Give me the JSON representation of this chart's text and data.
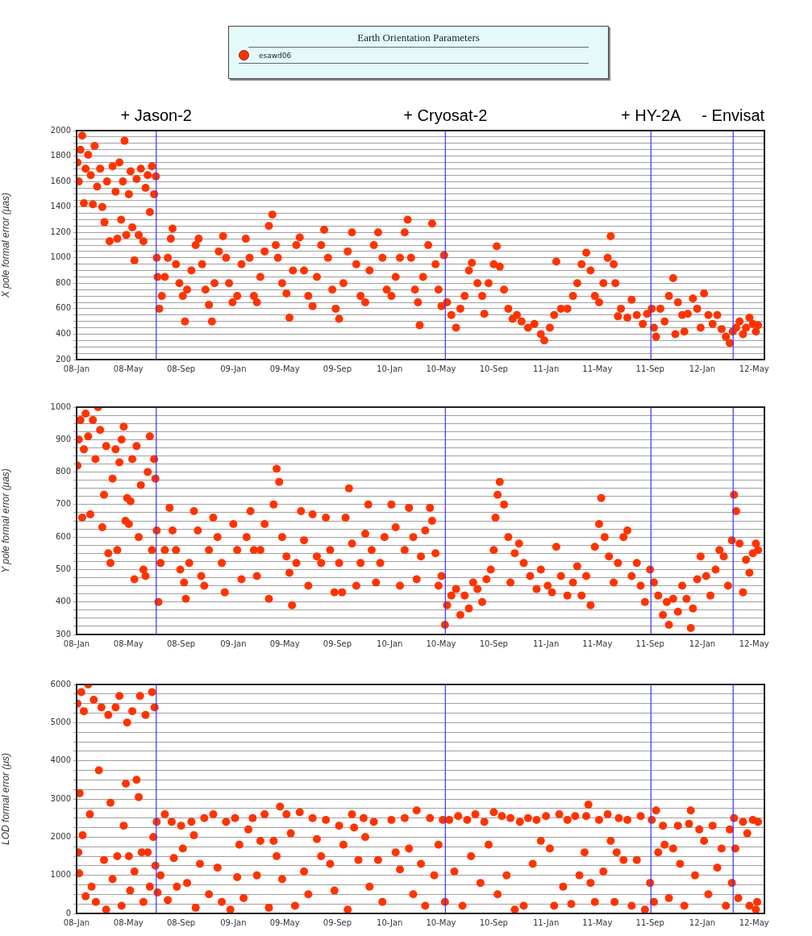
{
  "chart_data": [
    {
      "type": "scatter",
      "legend": "top",
      "legend_title": "Earth Orientation Parameters",
      "ylabel": "X pole formal error (μas)",
      "marker": "circle",
      "grid": "y",
      "xlim": [
        "2008-01-01",
        "2012-05-25"
      ],
      "xticks": [
        {
          "value": "2008-01-01",
          "label": "08-Jan"
        },
        {
          "value": "2008-05-01",
          "label": "08-May"
        },
        {
          "value": "2008-09-01",
          "label": "08-Sep"
        },
        {
          "value": "2009-01-01",
          "label": "09-Jan"
        },
        {
          "value": "2009-05-01",
          "label": "09-May"
        },
        {
          "value": "2009-09-01",
          "label": "09-Sep"
        },
        {
          "value": "2010-01-01",
          "label": "10-Jan"
        },
        {
          "value": "2010-05-01",
          "label": "10-May"
        },
        {
          "value": "2010-09-01",
          "label": "10-Sep"
        },
        {
          "value": "2011-01-01",
          "label": "11-Jan"
        },
        {
          "value": "2011-05-01",
          "label": "11-May"
        },
        {
          "value": "2011-09-01",
          "label": "11-Sep"
        },
        {
          "value": "2012-01-01",
          "label": "12-Jan"
        },
        {
          "value": "2012-05-01",
          "label": "12-May"
        }
      ],
      "ylim": [
        200,
        2000
      ],
      "yticks": [
        200,
        {
          "value": 250,
          "label": null
        },
        {
          "value": 300,
          "label": null
        },
        {
          "value": 350,
          "label": null
        },
        400,
        {
          "value": 450,
          "label": null
        },
        {
          "value": 500,
          "label": null
        },
        {
          "value": 550,
          "label": null
        },
        600,
        {
          "value": 650,
          "label": null
        },
        {
          "value": 700,
          "label": null
        },
        {
          "value": 750,
          "label": null
        },
        800,
        {
          "value": 850,
          "label": null
        },
        {
          "value": 900,
          "label": null
        },
        {
          "value": 950,
          "label": null
        },
        1000,
        {
          "value": 1050,
          "label": null
        },
        {
          "value": 1100,
          "label": null
        },
        {
          "value": 1150,
          "label": null
        },
        1200,
        {
          "value": 1250,
          "label": null
        },
        {
          "value": 1300,
          "label": null
        },
        {
          "value": 1350,
          "label": null
        },
        1400,
        {
          "value": 1450,
          "label": null
        },
        {
          "value": 1500,
          "label": null
        },
        {
          "value": 1550,
          "label": null
        },
        1600,
        {
          "value": 1650,
          "label": null
        },
        {
          "value": 1700,
          "label": null
        },
        {
          "value": 1750,
          "label": null
        },
        1800,
        {
          "value": 1850,
          "label": null
        },
        {
          "value": 1900,
          "label": null
        },
        {
          "value": 1950,
          "label": null
        },
        2000
      ],
      "ref_lines": [
        {
          "axis": "x",
          "value": "2008-07-05",
          "label": "+ Jason-2",
          "color": "#3333ff"
        },
        {
          "axis": "x",
          "value": "2010-05-11",
          "label": "+ Cryosat-2",
          "color": "#3333ff"
        },
        {
          "axis": "x",
          "value": "2011-09-03",
          "label": "+ HY-2A",
          "color": "#3333ff"
        },
        {
          "axis": "x",
          "value": "2012-03-13",
          "label": "- Envisat",
          "color": "#3333ff"
        }
      ],
      "series": [
        {
          "name": "esawd06",
          "color": "#ff3300",
          "x": [
            "2008-01-03",
            "2008-01-06",
            "2008-01-10",
            "2008-01-14",
            "2008-01-18",
            "2008-01-22",
            "2008-01-28",
            "2008-02-03",
            "2008-02-08",
            "2008-02-12",
            "2008-02-18",
            "2008-02-25",
            "2008-03-01",
            "2008-03-06",
            "2008-03-12",
            "2008-03-18",
            "2008-03-25",
            "2008-04-01",
            "2008-04-05",
            "2008-04-10",
            "2008-04-14",
            "2008-04-18",
            "2008-04-22",
            "2008-04-26",
            "2008-05-02",
            "2008-05-06",
            "2008-05-10",
            "2008-05-15",
            "2008-05-20",
            "2008-05-25",
            "2008-05-30",
            "2008-06-05",
            "2008-06-10",
            "2008-06-15",
            "2008-06-20",
            "2008-06-25",
            "2008-06-30",
            "2008-07-04",
            "2008-07-06",
            "2008-07-08",
            "2008-07-12",
            "2008-07-18",
            "2008-07-25",
            "2008-08-01",
            "2008-08-08",
            "2008-08-12",
            "2008-08-20",
            "2008-08-28",
            "2008-09-05",
            "2008-09-10",
            "2008-09-15",
            "2008-09-25",
            "2008-10-05",
            "2008-10-12",
            "2008-10-20",
            "2008-10-28",
            "2008-11-05",
            "2008-11-12",
            "2008-11-18",
            "2008-11-28",
            "2008-12-08",
            "2008-12-15",
            "2008-12-22",
            "2008-12-30",
            "2009-01-10",
            "2009-01-20",
            "2009-01-30",
            "2009-02-08",
            "2009-02-18",
            "2009-02-25",
            "2009-03-05",
            "2009-03-15",
            "2009-03-25",
            "2009-04-02",
            "2009-04-10",
            "2009-04-15",
            "2009-04-25",
            "2009-05-05",
            "2009-05-12",
            "2009-05-20",
            "2009-05-28",
            "2009-06-05",
            "2009-06-15",
            "2009-06-25",
            "2009-07-05",
            "2009-07-15",
            "2009-07-25",
            "2009-08-01",
            "2009-08-10",
            "2009-08-20",
            "2009-08-28",
            "2009-09-05",
            "2009-09-15",
            "2009-09-25",
            "2009-10-05",
            "2009-10-15",
            "2009-10-25",
            "2009-11-05",
            "2009-11-15",
            "2009-11-25",
            "2009-12-05",
            "2009-12-15",
            "2009-12-25",
            "2010-01-05",
            "2010-01-15",
            "2010-01-25",
            "2010-02-05",
            "2010-02-12",
            "2010-02-20",
            "2010-03-01",
            "2010-03-08",
            "2010-03-12",
            "2010-03-20",
            "2010-04-01",
            "2010-04-10",
            "2010-04-18",
            "2010-04-25",
            "2010-05-02",
            "2010-05-08",
            "2010-05-15",
            "2010-05-25",
            "2010-06-05",
            "2010-06-15",
            "2010-06-25",
            "2010-07-05",
            "2010-07-12",
            "2010-07-25",
            "2010-08-05",
            "2010-08-10",
            "2010-08-20",
            "2010-09-01",
            "2010-09-08",
            "2010-09-15",
            "2010-09-25",
            "2010-10-05",
            "2010-10-15",
            "2010-10-25",
            "2010-11-05",
            "2010-11-20",
            "2010-12-05",
            "2010-12-20",
            "2010-12-28",
            "2011-01-10",
            "2011-01-20",
            "2011-01-25",
            "2011-02-05",
            "2011-02-20",
            "2011-03-05",
            "2011-03-15",
            "2011-03-25",
            "2011-04-05",
            "2011-04-15",
            "2011-04-25",
            "2011-05-05",
            "2011-05-15",
            "2011-05-25",
            "2011-06-01",
            "2011-06-08",
            "2011-06-12",
            "2011-06-18",
            "2011-06-25",
            "2011-07-10",
            "2011-07-20",
            "2011-08-01",
            "2011-08-15",
            "2011-08-25",
            "2011-09-05",
            "2011-09-10",
            "2011-09-15",
            "2011-09-25",
            "2011-10-05",
            "2011-10-15",
            "2011-10-25",
            "2011-10-30",
            "2011-11-05",
            "2011-11-15",
            "2011-11-20",
            "2011-11-28",
            "2011-12-10",
            "2011-12-20",
            "2011-12-28",
            "2012-01-05",
            "2012-01-15",
            "2012-01-25",
            "2012-02-05",
            "2012-02-15",
            "2012-02-25",
            "2012-03-05",
            "2012-03-12",
            "2012-03-20",
            "2012-03-28",
            "2012-04-05",
            "2012-04-12",
            "2012-04-20",
            "2012-04-28",
            "2012-05-05",
            "2012-05-10"
          ],
          "values": [
            1750,
            1600,
            1850,
            1960,
            1430,
            1700,
            1810,
            1650,
            1420,
            1880,
            1560,
            1700,
            1400,
            1280,
            1600,
            1130,
            1720,
            1520,
            1150,
            1750,
            1300,
            1600,
            1920,
            1180,
            1500,
            1680,
            1240,
            980,
            1620,
            1180,
            1700,
            1130,
            1550,
            1650,
            1360,
            1720,
            1500,
            1640,
            1000,
            850,
            600,
            700,
            850,
            1000,
            1150,
            1230,
            950,
            800,
            700,
            500,
            750,
            900,
            1100,
            1150,
            950,
            750,
            630,
            500,
            800,
            1050,
            1170,
            1000,
            800,
            650,
            700,
            950,
            1150,
            1000,
            700,
            650,
            850,
            1050,
            1250,
            1340,
            1100,
            1000,
            800,
            720,
            530,
            900,
            1100,
            1160,
            900,
            700,
            620,
            850,
            1100,
            1220,
            1000,
            750,
            600,
            520,
            800,
            1050,
            1200,
            950,
            700,
            650,
            900,
            1100,
            1200,
            1000,
            750,
            700,
            850,
            1000,
            1200,
            1300,
            1000,
            750,
            650,
            470,
            850,
            1100,
            1270,
            950,
            750,
            620,
            1020,
            650,
            550,
            450,
            600,
            700,
            900,
            960,
            800,
            700,
            560,
            800,
            950,
            1090,
            930,
            750,
            600,
            520,
            550,
            500,
            450,
            480,
            400,
            350,
            450,
            550,
            970,
            600,
            600,
            700,
            800,
            950,
            1040,
            900,
            700,
            650,
            800,
            1000,
            1170,
            950,
            800,
            540,
            600,
            530,
            670,
            550,
            480,
            560,
            600,
            450,
            380,
            600,
            500,
            700,
            840,
            400,
            650,
            550,
            420,
            560,
            680,
            600,
            450,
            720,
            550,
            480,
            550,
            440,
            380,
            330,
            420,
            450,
            500,
            400,
            450,
            530,
            480,
            420,
            470
          ]
        }
      ]
    },
    {
      "type": "scatter",
      "ylabel": "Y pole formal error (μas)",
      "marker": "circle",
      "grid": "y",
      "xlim": [
        "2008-01-01",
        "2012-05-25"
      ],
      "xticks": [
        {
          "value": "2008-01-01",
          "label": "08-Jan"
        },
        {
          "value": "2008-05-01",
          "label": "08-May"
        },
        {
          "value": "2008-09-01",
          "label": "08-Sep"
        },
        {
          "value": "2009-01-01",
          "label": "09-Jan"
        },
        {
          "value": "2009-05-01",
          "label": "09-May"
        },
        {
          "value": "2009-09-01",
          "label": "09-Sep"
        },
        {
          "value": "2010-01-01",
          "label": "10-Jan"
        },
        {
          "value": "2010-05-01",
          "label": "10-May"
        },
        {
          "value": "2010-09-01",
          "label": "10-Sep"
        },
        {
          "value": "2011-01-01",
          "label": "11-Jan"
        },
        {
          "value": "2011-05-01",
          "label": "11-May"
        },
        {
          "value": "2011-09-01",
          "label": "11-Sep"
        },
        {
          "value": "2012-01-01",
          "label": "12-Jan"
        },
        {
          "value": "2012-05-01",
          "label": "12-May"
        }
      ],
      "ylim": [
        300,
        1000
      ],
      "yticks": [
        300,
        {
          "value": 325,
          "label": null
        },
        {
          "value": 350,
          "label": null
        },
        {
          "value": 375,
          "label": null
        },
        400,
        {
          "value": 425,
          "label": null
        },
        {
          "value": 450,
          "label": null
        },
        {
          "value": 475,
          "label": null
        },
        500,
        {
          "value": 525,
          "label": null
        },
        {
          "value": 550,
          "label": null
        },
        {
          "value": 575,
          "label": null
        },
        600,
        {
          "value": 625,
          "label": null
        },
        {
          "value": 650,
          "label": null
        },
        {
          "value": 675,
          "label": null
        },
        700,
        {
          "value": 725,
          "label": null
        },
        {
          "value": 750,
          "label": null
        },
        {
          "value": 775,
          "label": null
        },
        800,
        {
          "value": 825,
          "label": null
        },
        {
          "value": 850,
          "label": null
        },
        {
          "value": 875,
          "label": null
        },
        900,
        {
          "value": 925,
          "label": null
        },
        {
          "value": 950,
          "label": null
        },
        {
          "value": 975,
          "label": null
        },
        1000
      ],
      "ref_lines": [
        {
          "axis": "x",
          "value": "2008-07-05",
          "color": "#3333ff"
        },
        {
          "axis": "x",
          "value": "2010-05-11",
          "color": "#3333ff"
        },
        {
          "axis": "x",
          "value": "2011-09-03",
          "color": "#3333ff"
        },
        {
          "axis": "x",
          "value": "2012-03-13",
          "color": "#3333ff"
        }
      ],
      "series": [
        {
          "color": "#ff3300",
          "x": [
            "2008-01-03",
            "2008-01-06",
            "2008-01-10",
            "2008-01-14",
            "2008-01-18",
            "2008-01-22",
            "2008-01-28",
            "2008-02-02",
            "2008-02-08",
            "2008-02-14",
            "2008-02-20",
            "2008-02-25",
            "2008-03-01",
            "2008-03-05",
            "2008-03-10",
            "2008-03-15",
            "2008-03-20",
            "2008-03-25",
            "2008-04-01",
            "2008-04-05",
            "2008-04-10",
            "2008-04-15",
            "2008-04-20",
            "2008-04-24",
            "2008-04-28",
            "2008-05-02",
            "2008-05-06",
            "2008-05-10",
            "2008-05-15",
            "2008-05-20",
            "2008-05-25",
            "2008-05-30",
            "2008-06-05",
            "2008-06-10",
            "2008-06-15",
            "2008-06-20",
            "2008-06-25",
            "2008-06-30",
            "2008-07-03",
            "2008-07-06",
            "2008-07-10",
            "2008-07-15",
            "2008-07-25",
            "2008-08-05",
            "2008-08-12",
            "2008-08-20",
            "2008-08-30",
            "2008-09-08",
            "2008-09-12",
            "2008-09-20",
            "2008-10-01",
            "2008-10-10",
            "2008-10-18",
            "2008-10-25",
            "2008-11-05",
            "2008-11-15",
            "2008-11-25",
            "2008-12-05",
            "2008-12-12",
            "2009-01-01",
            "2009-01-10",
            "2009-01-20",
            "2009-02-01",
            "2009-02-10",
            "2009-02-18",
            "2009-02-25",
            "2009-03-05",
            "2009-03-15",
            "2009-03-25",
            "2009-04-05",
            "2009-04-12",
            "2009-04-18",
            "2009-04-25",
            "2009-05-05",
            "2009-05-12",
            "2009-05-18",
            "2009-05-28",
            "2009-06-08",
            "2009-06-15",
            "2009-06-25",
            "2009-07-05",
            "2009-07-15",
            "2009-07-25",
            "2009-08-05",
            "2009-08-15",
            "2009-08-25",
            "2009-09-05",
            "2009-09-12",
            "2009-09-20",
            "2009-09-28",
            "2009-10-05",
            "2009-10-15",
            "2009-10-25",
            "2009-11-05",
            "2009-11-12",
            "2009-11-20",
            "2009-11-30",
            "2009-12-10",
            "2009-12-20",
            "2010-01-05",
            "2010-01-15",
            "2010-01-25",
            "2010-02-05",
            "2010-02-15",
            "2010-02-25",
            "2010-03-05",
            "2010-03-15",
            "2010-03-25",
            "2010-04-05",
            "2010-04-10",
            "2010-04-18",
            "2010-04-25",
            "2010-05-02",
            "2010-05-10",
            "2010-05-15",
            "2010-05-25",
            "2010-06-05",
            "2010-06-15",
            "2010-06-25",
            "2010-07-05",
            "2010-07-15",
            "2010-07-25",
            "2010-08-05",
            "2010-08-15",
            "2010-08-25",
            "2010-09-01",
            "2010-09-05",
            "2010-09-10",
            "2010-09-15",
            "2010-09-25",
            "2010-10-05",
            "2010-10-10",
            "2010-10-20",
            "2010-10-30",
            "2010-11-10",
            "2010-11-25",
            "2010-12-10",
            "2010-12-20",
            "2011-01-05",
            "2011-01-15",
            "2011-01-25",
            "2011-02-05",
            "2011-02-20",
            "2011-03-05",
            "2011-03-15",
            "2011-03-25",
            "2011-04-05",
            "2011-04-15",
            "2011-04-25",
            "2011-05-05",
            "2011-05-10",
            "2011-05-18",
            "2011-05-28",
            "2011-06-08",
            "2011-06-18",
            "2011-07-01",
            "2011-07-10",
            "2011-07-20",
            "2011-08-01",
            "2011-08-10",
            "2011-08-20",
            "2011-09-01",
            "2011-09-10",
            "2011-09-20",
            "2011-10-01",
            "2011-10-10",
            "2011-10-15",
            "2011-10-25",
            "2011-11-05",
            "2011-11-15",
            "2011-11-25",
            "2011-12-05",
            "2011-12-10",
            "2011-12-20",
            "2011-12-28",
            "2012-01-10",
            "2012-01-20",
            "2012-02-01",
            "2012-02-10",
            "2012-02-20",
            "2012-03-01",
            "2012-03-10",
            "2012-03-15",
            "2012-03-20",
            "2012-03-28",
            "2012-04-05",
            "2012-04-12",
            "2012-04-20",
            "2012-04-28",
            "2012-05-05",
            "2012-05-10"
          ],
          "values": [
            820,
            900,
            960,
            660,
            870,
            980,
            910,
            670,
            960,
            840,
            1000,
            930,
            630,
            730,
            880,
            550,
            520,
            780,
            870,
            560,
            830,
            900,
            940,
            650,
            720,
            640,
            710,
            840,
            470,
            880,
            600,
            760,
            500,
            480,
            800,
            910,
            560,
            840,
            780,
            620,
            400,
            520,
            560,
            690,
            620,
            560,
            500,
            460,
            410,
            520,
            680,
            620,
            480,
            450,
            560,
            660,
            600,
            520,
            430,
            640,
            560,
            470,
            600,
            680,
            560,
            480,
            560,
            640,
            410,
            700,
            810,
            770,
            600,
            540,
            490,
            390,
            520,
            680,
            590,
            450,
            670,
            540,
            520,
            660,
            560,
            430,
            520,
            430,
            660,
            750,
            580,
            450,
            520,
            610,
            700,
            560,
            460,
            520,
            600,
            700,
            630,
            450,
            560,
            690,
            600,
            470,
            540,
            620,
            690,
            650,
            550,
            450,
            480,
            330,
            390,
            420,
            440,
            360,
            420,
            380,
            460,
            440,
            400,
            470,
            500,
            560,
            660,
            730,
            770,
            700,
            600,
            460,
            550,
            580,
            520,
            480,
            440,
            500,
            450,
            430,
            570,
            480,
            420,
            460,
            510,
            420,
            480,
            390,
            570,
            640,
            720,
            600,
            540,
            460,
            520,
            600,
            620,
            480,
            520,
            450,
            400,
            500,
            460,
            420,
            360,
            400,
            330,
            410,
            370,
            450,
            410,
            320,
            380,
            470,
            540,
            480,
            420,
            500,
            560,
            540,
            450,
            590,
            730,
            680,
            580,
            430,
            530,
            490,
            550,
            580,
            560
          ]
        }
      ]
    },
    {
      "type": "scatter",
      "ylabel": "LOD formal error (μs)",
      "marker": "circle",
      "grid": "y",
      "xlim": [
        "2008-01-01",
        "2012-05-25"
      ],
      "xticks": [
        {
          "value": "2008-01-01",
          "label": "08-Jan"
        },
        {
          "value": "2008-05-01",
          "label": "08-May"
        },
        {
          "value": "2008-09-01",
          "label": "08-Sep"
        },
        {
          "value": "2009-01-01",
          "label": "09-Jan"
        },
        {
          "value": "2009-05-01",
          "label": "09-May"
        },
        {
          "value": "2009-09-01",
          "label": "09-Sep"
        },
        {
          "value": "2010-01-01",
          "label": "10-Jan"
        },
        {
          "value": "2010-05-01",
          "label": "10-May"
        },
        {
          "value": "2010-09-01",
          "label": "10-Sep"
        },
        {
          "value": "2011-01-01",
          "label": "11-Jan"
        },
        {
          "value": "2011-05-01",
          "label": "11-May"
        },
        {
          "value": "2011-09-01",
          "label": "11-Sep"
        },
        {
          "value": "2012-01-01",
          "label": "12-Jan"
        },
        {
          "value": "2012-05-01",
          "label": "12-May"
        }
      ],
      "ylim": [
        0,
        6000
      ],
      "yticks": [
        0,
        {
          "value": 250,
          "label": null
        },
        {
          "value": 500,
          "label": null
        },
        {
          "value": 750,
          "label": null
        },
        1000,
        {
          "value": 1250,
          "label": null
        },
        {
          "value": 1500,
          "label": null
        },
        {
          "value": 1750,
          "label": null
        },
        2000,
        {
          "value": 2250,
          "label": null
        },
        {
          "value": 2500,
          "label": null
        },
        {
          "value": 2750,
          "label": null
        },
        3000,
        {
          "value": 3250,
          "label": null
        },
        {
          "value": 3500,
          "label": null
        },
        {
          "value": 3750,
          "label": null
        },
        4000,
        {
          "value": 4250,
          "label": null
        },
        {
          "value": 4500,
          "label": null
        },
        {
          "value": 4750,
          "label": null
        },
        5000,
        {
          "value": 5250,
          "label": null
        },
        {
          "value": 5500,
          "label": null
        },
        {
          "value": 5750,
          "label": null
        },
        6000
      ],
      "ref_lines": [
        {
          "axis": "x",
          "value": "2008-07-05",
          "color": "#3333ff"
        },
        {
          "axis": "x",
          "value": "2010-05-11",
          "color": "#3333ff"
        },
        {
          "axis": "x",
          "value": "2011-09-03",
          "color": "#3333ff"
        },
        {
          "axis": "x",
          "value": "2012-03-13",
          "color": "#3333ff"
        }
      ],
      "series": [
        {
          "color": "#ff3300",
          "x": [
            "2008-01-03",
            "2008-01-05",
            "2008-01-07",
            "2008-01-08",
            "2008-01-12",
            "2008-01-15",
            "2008-01-18",
            "2008-01-22",
            "2008-01-28",
            "2008-02-01",
            "2008-02-05",
            "2008-02-10",
            "2008-02-15",
            "2008-02-22",
            "2008-02-28",
            "2008-03-05",
            "2008-03-10",
            "2008-03-15",
            "2008-03-20",
            "2008-03-25",
            "2008-04-01",
            "2008-04-05",
            "2008-04-10",
            "2008-04-15",
            "2008-04-20",
            "2008-04-25",
            "2008-04-28",
            "2008-05-02",
            "2008-05-05",
            "2008-05-10",
            "2008-05-15",
            "2008-05-20",
            "2008-05-25",
            "2008-05-28",
            "2008-06-01",
            "2008-06-05",
            "2008-06-10",
            "2008-06-15",
            "2008-06-20",
            "2008-06-25",
            "2008-06-28",
            "2008-07-01",
            "2008-07-03",
            "2008-07-06",
            "2008-07-08",
            "2008-07-15",
            "2008-07-25",
            "2008-08-01",
            "2008-08-10",
            "2008-08-15",
            "2008-08-22",
            "2008-09-01",
            "2008-09-05",
            "2008-09-15",
            "2008-09-25",
            "2008-10-01",
            "2008-10-05",
            "2008-10-15",
            "2008-10-25",
            "2008-11-05",
            "2008-11-15",
            "2008-11-25",
            "2008-12-05",
            "2008-12-15",
            "2008-12-25",
            "2009-01-05",
            "2009-01-10",
            "2009-01-15",
            "2009-01-25",
            "2009-02-05",
            "2009-02-15",
            "2009-02-25",
            "2009-03-05",
            "2009-03-15",
            "2009-03-25",
            "2009-04-05",
            "2009-04-12",
            "2009-04-20",
            "2009-04-25",
            "2009-05-05",
            "2009-05-15",
            "2009-05-25",
            "2009-06-05",
            "2009-06-15",
            "2009-06-25",
            "2009-07-05",
            "2009-07-15",
            "2009-07-25",
            "2009-08-05",
            "2009-08-15",
            "2009-08-25",
            "2009-09-05",
            "2009-09-15",
            "2009-09-25",
            "2009-10-05",
            "2009-10-10",
            "2009-10-20",
            "2009-11-01",
            "2009-11-05",
            "2009-11-15",
            "2009-11-25",
            "2009-12-05",
            "2009-12-15",
            "2010-01-05",
            "2010-01-15",
            "2010-01-25",
            "2010-02-05",
            "2010-02-15",
            "2010-02-25",
            "2010-03-05",
            "2010-03-15",
            "2010-03-25",
            "2010-04-05",
            "2010-04-15",
            "2010-04-25",
            "2010-05-05",
            "2010-05-10",
            "2010-05-20",
            "2010-06-01",
            "2010-06-10",
            "2010-06-20",
            "2010-07-01",
            "2010-07-10",
            "2010-07-20",
            "2010-08-01",
            "2010-08-10",
            "2010-08-20",
            "2010-09-01",
            "2010-09-10",
            "2010-09-20",
            "2010-10-01",
            "2010-10-10",
            "2010-10-20",
            "2010-11-01",
            "2010-11-10",
            "2010-11-20",
            "2010-12-01",
            "2010-12-10",
            "2010-12-20",
            "2011-01-01",
            "2011-01-10",
            "2011-01-20",
            "2011-02-01",
            "2011-02-10",
            "2011-02-20",
            "2011-03-01",
            "2011-03-10",
            "2011-03-20",
            "2011-04-01",
            "2011-04-05",
            "2011-04-10",
            "2011-04-15",
            "2011-04-25",
            "2011-05-05",
            "2011-05-15",
            "2011-05-25",
            "2011-06-01",
            "2011-06-10",
            "2011-06-15",
            "2011-06-20",
            "2011-07-01",
            "2011-07-10",
            "2011-07-20",
            "2011-08-01",
            "2011-08-10",
            "2011-08-20",
            "2011-09-01",
            "2011-09-05",
            "2011-09-10",
            "2011-09-15",
            "2011-09-20",
            "2011-10-01",
            "2011-10-05",
            "2011-10-15",
            "2011-10-25",
            "2011-11-05",
            "2011-11-10",
            "2011-11-20",
            "2011-12-01",
            "2011-12-05",
            "2011-12-15",
            "2011-12-25",
            "2012-01-05",
            "2012-01-15",
            "2012-01-25",
            "2012-02-05",
            "2012-02-15",
            "2012-02-25",
            "2012-03-05",
            "2012-03-10",
            "2012-03-15",
            "2012-03-18",
            "2012-03-25",
            "2012-04-05",
            "2012-04-15",
            "2012-04-20",
            "2012-04-28",
            "2012-05-05",
            "2012-05-08",
            "2012-05-10"
          ],
          "values": [
            5500,
            1600,
            1050,
            3150,
            5800,
            2050,
            5300,
            450,
            6000,
            2600,
            700,
            5600,
            300,
            3750,
            5400,
            1400,
            100,
            5200,
            2900,
            900,
            5400,
            1500,
            5700,
            200,
            2300,
            3400,
            5000,
            1500,
            600,
            5300,
            1100,
            3500,
            3050,
            5700,
            1600,
            300,
            5200,
            1600,
            700,
            5800,
            2000,
            5400,
            1250,
            2400,
            550,
            1000,
            2600,
            350,
            2400,
            1450,
            700,
            2300,
            1700,
            800,
            2400,
            2050,
            150,
            1300,
            2500,
            500,
            2600,
            1200,
            300,
            2400,
            100,
            2500,
            950,
            1800,
            400,
            2200,
            2500,
            1000,
            1900,
            2600,
            150,
            1900,
            1500,
            2800,
            900,
            2600,
            2100,
            200,
            2650,
            1100,
            500,
            2500,
            1950,
            1500,
            2450,
            1300,
            600,
            2300,
            1800,
            100,
            2600,
            2250,
            1400,
            2500,
            2000,
            700,
            2400,
            1400,
            300,
            2450,
            1600,
            1150,
            2500,
            1700,
            500,
            2700,
            1300,
            200,
            2500,
            1000,
            1800,
            2450,
            300,
            2450,
            1100,
            2550,
            200,
            2450,
            1500,
            2600,
            800,
            2400,
            1800,
            2650,
            500,
            2550,
            1000,
            2500,
            100,
            2400,
            200,
            2500,
            1300,
            2450,
            1900,
            2550,
            1700,
            200,
            2600,
            700,
            2450,
            250,
            2550,
            1000,
            1600,
            2550,
            2850,
            800,
            300,
            2450,
            1100,
            2600,
            1900,
            300,
            1600,
            2500,
            1400,
            2450,
            200,
            1400,
            2550,
            100,
            800,
            2450,
            300,
            2700,
            1600,
            2300,
            1800,
            400,
            1700,
            2300,
            1300,
            200,
            2350,
            2700,
            1000,
            2200,
            1900,
            500,
            2300,
            1200,
            1700,
            200,
            2200,
            800,
            2500,
            1700,
            400,
            2400,
            2100,
            200,
            2450,
            100,
            300,
            2400
          ]
        }
      ]
    }
  ]
}
